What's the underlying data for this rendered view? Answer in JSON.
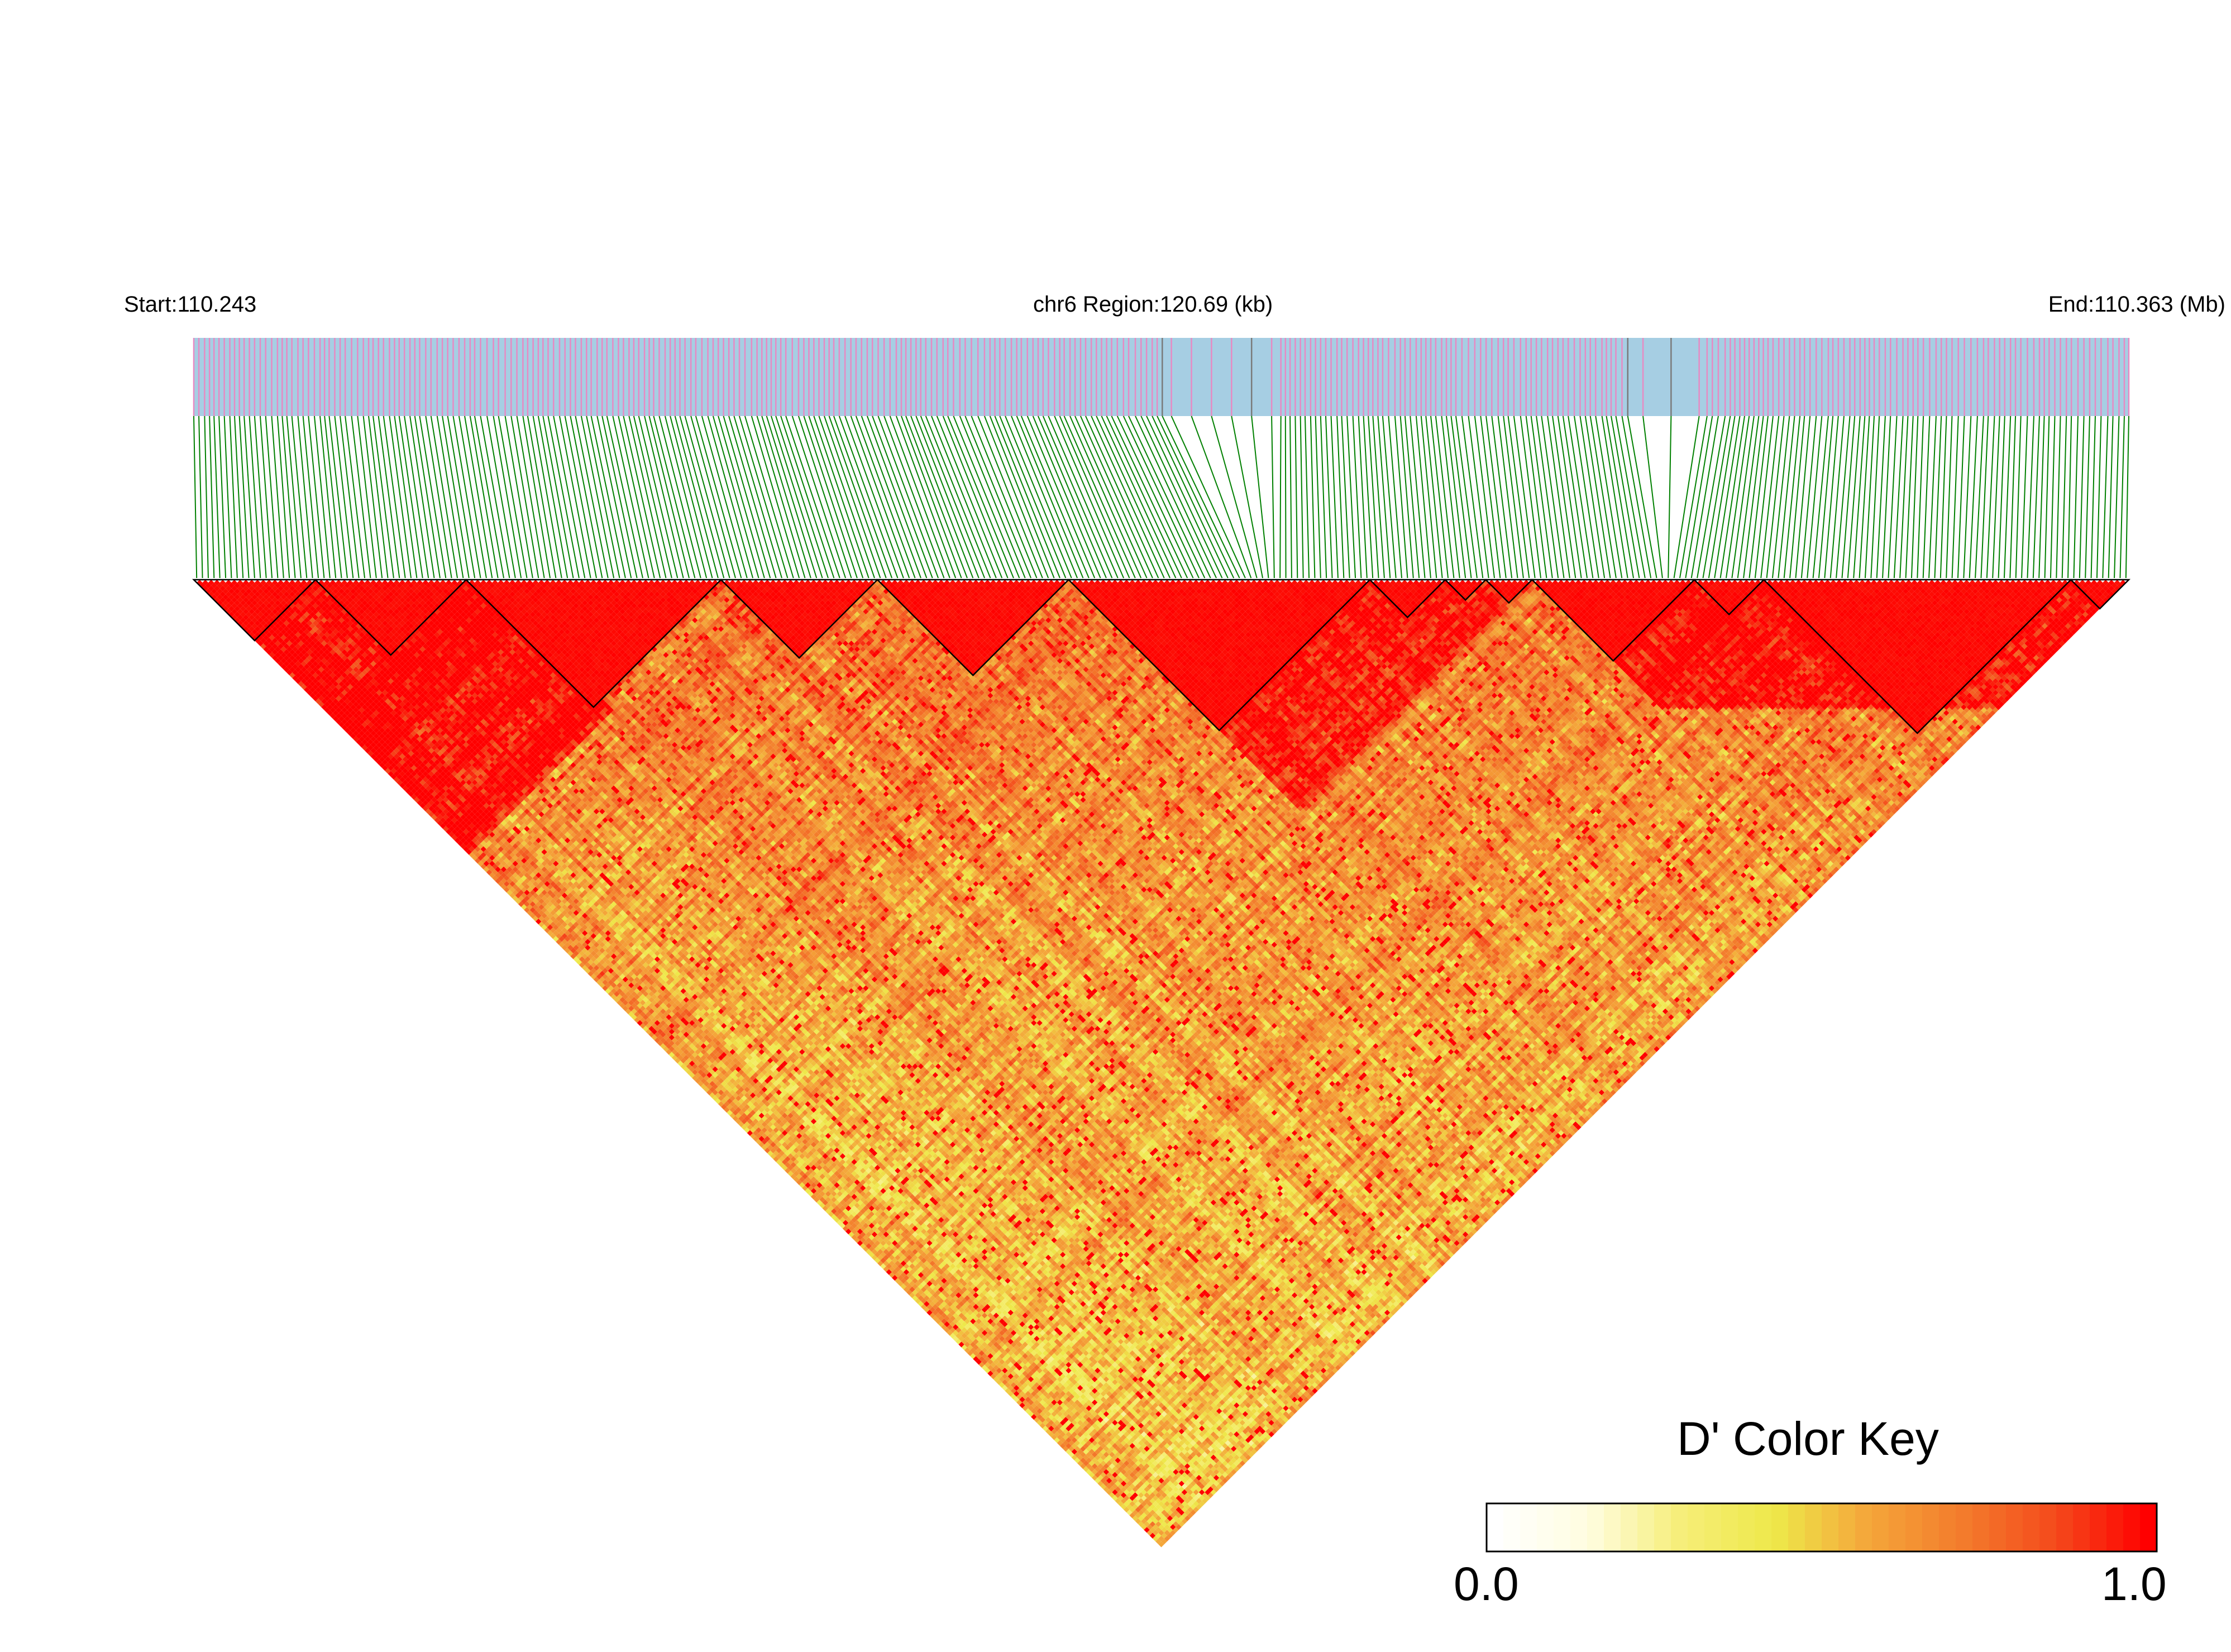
{
  "header": {
    "start_label": "Start:110.243",
    "region_label": "chr6 Region:120.69 (kb)",
    "end_label": "End:110.363 (Mb)"
  },
  "color_key": {
    "title": "D' Color Key",
    "min_label": "0.0",
    "max_label": "1.0",
    "stops": [
      "#ffffff",
      "#fffde0",
      "#f6ee78",
      "#eee84a",
      "#f4a63a",
      "#f37c2c",
      "#f44a1c",
      "#ff0000"
    ]
  },
  "colors": {
    "snp_bar": "#a6cee3",
    "snp_tick": "#e78ac3",
    "snp_tick_dense": "#7a7a7a",
    "connector": "#008000",
    "high_ld": "#ff0000",
    "block_outline": "#000000"
  },
  "haplotype_blocks": [
    {
      "first_snp": 0,
      "last_snp": 20
    },
    {
      "first_snp": 21,
      "last_snp": 46
    },
    {
      "first_snp": 47,
      "last_snp": 90
    },
    {
      "first_snp": 91,
      "last_snp": 117
    },
    {
      "first_snp": 118,
      "last_snp": 150
    },
    {
      "first_snp": 151,
      "last_snp": 202
    },
    {
      "first_snp": 203,
      "last_snp": 215
    },
    {
      "first_snp": 216,
      "last_snp": 222
    },
    {
      "first_snp": 223,
      "last_snp": 230
    },
    {
      "first_snp": 231,
      "last_snp": 258
    },
    {
      "first_snp": 259,
      "last_snp": 270
    },
    {
      "first_snp": 271,
      "last_snp": 323
    },
    {
      "first_snp": 324,
      "last_snp": 333
    }
  ]
}
